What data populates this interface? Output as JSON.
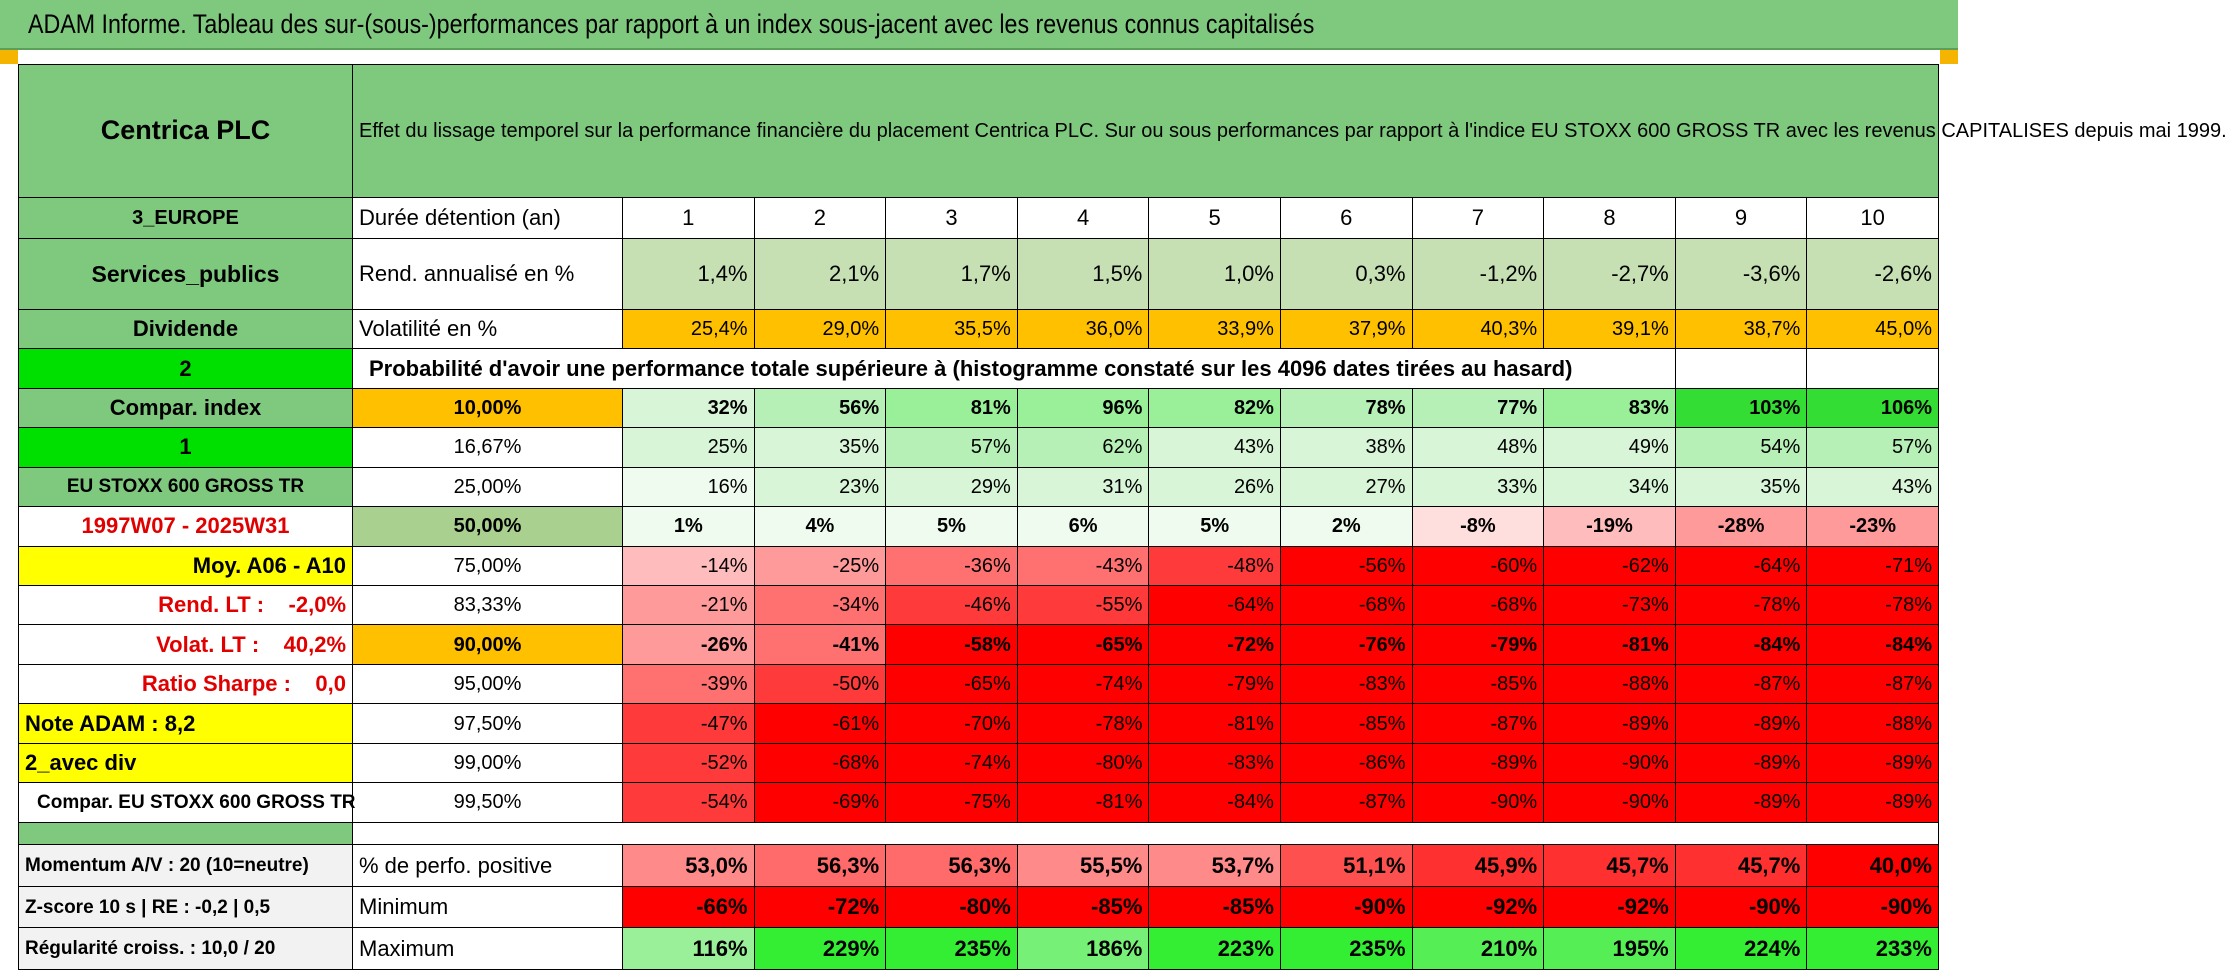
{
  "banner_title": "ADAM Informe. Tableau des sur-(sous-)performances par rapport à un index sous-jacent avec les revenus connus capitalisés",
  "colors": {
    "header_green": "#7fc97f",
    "yellow": "#ffff00",
    "orange": "#ffc000",
    "bright_green": "#00e000",
    "red": "#ff0000"
  },
  "left": {
    "company": "Centrica PLC",
    "region": "3_EUROPE",
    "sector": "Services_publics",
    "dividend": "Dividende",
    "n1": "2",
    "compar": "Compar. index",
    "n2": "1",
    "index_name": "EU STOXX 600 GROSS TR",
    "period": "1997W07 - 2025W31",
    "moy": "Moy. A06 - A10",
    "rend_lt": "Rend. LT :    -2,0%",
    "volat_lt": "Volat. LT :    40,2%",
    "sharpe": "Ratio Sharpe :    0,0",
    "note": "Note ADAM : 8,2",
    "avec_div": "2_avec div",
    "compar_eu": "Compar. EU STOXX 600 GROSS TR",
    "momentum": "Momentum A/V : 20 (10=neutre)",
    "zscore": "Z-score 10 s | RE : -0,2 | 0,5",
    "regularite": "Régularité croiss. : 10,0 / 20"
  },
  "header_text": "Effet du lissage temporel sur la performance financière du placement Centrica PLC. Sur ou sous performances par rapport à l'indice EU STOXX 600 GROSS TR avec les revenus CAPITALISES depuis mai 1999.",
  "duree_label": "Durée détention (an)",
  "years": [
    "1",
    "2",
    "3",
    "4",
    "5",
    "6",
    "7",
    "8",
    "9",
    "10"
  ],
  "rend_label": "Rend. annualisé en %",
  "rend": [
    "1,4%",
    "2,1%",
    "1,7%",
    "1,5%",
    "1,0%",
    "0,3%",
    "-1,2%",
    "-2,7%",
    "-3,6%",
    "-2,6%"
  ],
  "vol_label": "Volatilité en %",
  "vol": [
    "25,4%",
    "29,0%",
    "35,5%",
    "36,0%",
    "33,9%",
    "37,9%",
    "40,3%",
    "39,1%",
    "38,7%",
    "45,0%"
  ],
  "prob_title": "Probabilité d'avoir une performance totale supérieure à (histogramme constaté sur les 4096 dates tirées au hasard)",
  "quantiles": [
    {
      "q": "10,00%",
      "v": [
        "32%",
        "56%",
        "81%",
        "96%",
        "82%",
        "78%",
        "77%",
        "83%",
        "103%",
        "106%"
      ]
    },
    {
      "q": "16,67%",
      "v": [
        "25%",
        "35%",
        "57%",
        "62%",
        "43%",
        "38%",
        "48%",
        "49%",
        "54%",
        "57%"
      ]
    },
    {
      "q": "25,00%",
      "v": [
        "16%",
        "23%",
        "29%",
        "31%",
        "26%",
        "27%",
        "33%",
        "34%",
        "35%",
        "43%"
      ]
    },
    {
      "q": "50,00%",
      "v": [
        "1%",
        "4%",
        "5%",
        "6%",
        "5%",
        "2%",
        "-8%",
        "-19%",
        "-28%",
        "-23%"
      ]
    },
    {
      "q": "75,00%",
      "v": [
        "-14%",
        "-25%",
        "-36%",
        "-43%",
        "-48%",
        "-56%",
        "-60%",
        "-62%",
        "-64%",
        "-71%"
      ]
    },
    {
      "q": "83,33%",
      "v": [
        "-21%",
        "-34%",
        "-46%",
        "-55%",
        "-64%",
        "-68%",
        "-68%",
        "-73%",
        "-78%",
        "-78%"
      ]
    },
    {
      "q": "90,00%",
      "v": [
        "-26%",
        "-41%",
        "-58%",
        "-65%",
        "-72%",
        "-76%",
        "-79%",
        "-81%",
        "-84%",
        "-84%"
      ]
    },
    {
      "q": "95,00%",
      "v": [
        "-39%",
        "-50%",
        "-65%",
        "-74%",
        "-79%",
        "-83%",
        "-85%",
        "-88%",
        "-87%",
        "-87%"
      ]
    },
    {
      "q": "97,50%",
      "v": [
        "-47%",
        "-61%",
        "-70%",
        "-78%",
        "-81%",
        "-85%",
        "-87%",
        "-89%",
        "-89%",
        "-88%"
      ]
    },
    {
      "q": "99,00%",
      "v": [
        "-52%",
        "-68%",
        "-74%",
        "-80%",
        "-83%",
        "-86%",
        "-89%",
        "-90%",
        "-89%",
        "-89%"
      ]
    },
    {
      "q": "99,50%",
      "v": [
        "-54%",
        "-69%",
        "-75%",
        "-81%",
        "-84%",
        "-87%",
        "-90%",
        "-90%",
        "-89%",
        "-89%"
      ]
    }
  ],
  "pos_label": "% de perfo. positive",
  "pos": [
    "53,0%",
    "56,3%",
    "56,3%",
    "55,5%",
    "53,7%",
    "51,1%",
    "45,9%",
    "45,7%",
    "45,7%",
    "40,0%"
  ],
  "min_label": "Minimum",
  "min": [
    "-66%",
    "-72%",
    "-80%",
    "-85%",
    "-85%",
    "-90%",
    "-92%",
    "-92%",
    "-90%",
    "-90%"
  ],
  "max_label": "Maximum",
  "max": [
    "116%",
    "229%",
    "235%",
    "186%",
    "223%",
    "235%",
    "210%",
    "195%",
    "224%",
    "233%"
  ]
}
